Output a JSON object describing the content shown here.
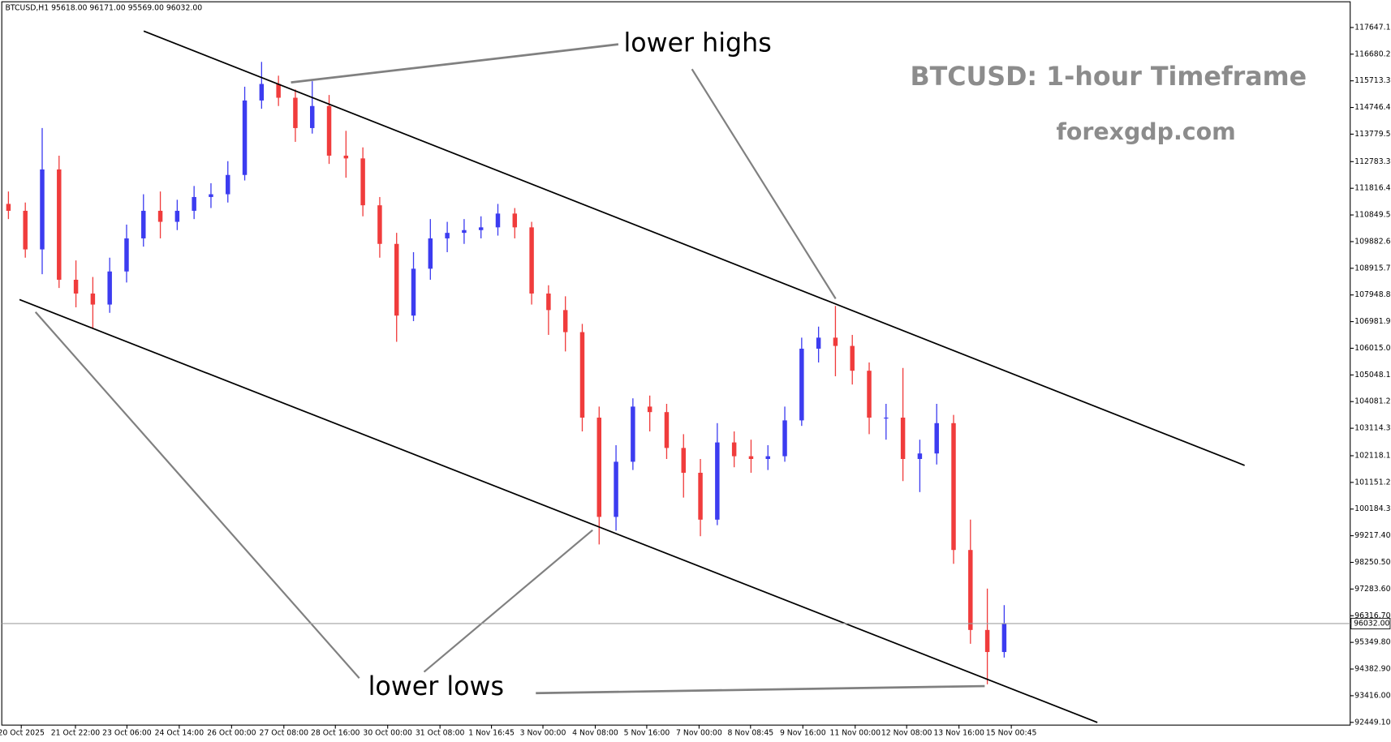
{
  "chart_data": {
    "type": "candlestick",
    "info": "BTCUSD,H1  95618.00 96171.00 95569.00 96032.00",
    "title": "BTCUSD: 1-hour Timeframe",
    "subtitle": "forexgdp.com",
    "annotations": [
      "lower highs",
      "lower lows"
    ],
    "up_color": "#3c3cf0",
    "down_color": "#f03c3c",
    "current_price": {
      "value": 96032,
      "label": "96032.00"
    },
    "xlim": [
      0,
      80
    ],
    "ylim": [
      92350,
      118580
    ],
    "xticks": [
      {
        "value": 1.26,
        "label": "20 Oct 2025"
      },
      {
        "value": 4.47,
        "label": "21 Oct 22:00"
      },
      {
        "value": 7.52,
        "label": "23 Oct 06:00"
      },
      {
        "value": 10.62,
        "label": "24 Oct 14:00"
      },
      {
        "value": 13.72,
        "label": "26 Oct 00:00"
      },
      {
        "value": 16.82,
        "label": "27 Oct 08:00"
      },
      {
        "value": 19.87,
        "label": "28 Oct 16:00"
      },
      {
        "value": 22.97,
        "label": "30 Oct 00:00"
      },
      {
        "value": 26.07,
        "label": "31 Oct 08:00"
      },
      {
        "value": 29.12,
        "label": "1 Nov 16:45"
      },
      {
        "value": 32.17,
        "label": "3 Nov 00:00"
      },
      {
        "value": 35.27,
        "label": "4 Nov 08:00"
      },
      {
        "value": 38.32,
        "label": "5 Nov 16:00"
      },
      {
        "value": 41.42,
        "label": "7 Nov 00:00"
      },
      {
        "value": 44.47,
        "label": "8 Nov 08:45"
      },
      {
        "value": 47.57,
        "label": "9 Nov 16:00"
      },
      {
        "value": 50.67,
        "label": "11 Nov 00:00"
      },
      {
        "value": 53.72,
        "label": "12 Nov 08:00"
      },
      {
        "value": 56.82,
        "label": "13 Nov 16:00"
      },
      {
        "value": 59.92,
        "label": "15 Nov 00:45"
      }
    ],
    "yticks": [
      {
        "value": 117647.1,
        "label": "117647.10"
      },
      {
        "value": 116680.2,
        "label": "116680.20"
      },
      {
        "value": 115713.3,
        "label": "115713.30"
      },
      {
        "value": 114746.4,
        "label": "114746.40"
      },
      {
        "value": 113779.5,
        "label": "113779.50"
      },
      {
        "value": 112783.3,
        "label": "112783.30"
      },
      {
        "value": 111816.4,
        "label": "111816.40"
      },
      {
        "value": 110849.5,
        "label": "110849.50"
      },
      {
        "value": 109882.6,
        "label": "109882.60"
      },
      {
        "value": 108915.7,
        "label": "108915.70"
      },
      {
        "value": 107948.8,
        "label": "107948.80"
      },
      {
        "value": 106981.9,
        "label": "106981.90"
      },
      {
        "value": 106015,
        "label": "106015.00"
      },
      {
        "value": 105048.1,
        "label": "105048.10"
      },
      {
        "value": 104081.2,
        "label": "104081.20"
      },
      {
        "value": 103114.3,
        "label": "103114.30"
      },
      {
        "value": 102118.1,
        "label": "102118.10"
      },
      {
        "value": 101151.2,
        "label": "101151.20"
      },
      {
        "value": 100184.3,
        "label": "100184.30"
      },
      {
        "value": 99217.4,
        "label": "99217.40"
      },
      {
        "value": 98250.5,
        "label": "98250.50"
      },
      {
        "value": 97283.6,
        "label": "97283.60"
      },
      {
        "value": 96316.7,
        "label": "96316.70"
      },
      {
        "value": 95349.8,
        "label": "95349.80"
      },
      {
        "value": 94382.9,
        "label": "94382.90"
      },
      {
        "value": 93416,
        "label": "93416.00"
      },
      {
        "value": 92449.1,
        "label": "92449.10"
      }
    ],
    "open": [
      111250,
      111000,
      109600,
      112500,
      108500,
      108000,
      107600,
      108800,
      110000,
      111000,
      110600,
      111000,
      111500,
      111600,
      112300,
      115000,
      115600,
      115100,
      114000,
      114800,
      113000,
      112900,
      111200,
      109800,
      107200,
      108900,
      110000,
      110200,
      110300,
      110400,
      110900,
      110400,
      108000,
      107400,
      106600,
      103500,
      99900,
      101900,
      103900,
      103700,
      102400,
      101500,
      99800,
      102600,
      102100,
      102000,
      102100,
      103400,
      106000,
      106400,
      106100,
      105200,
      103500,
      103500,
      102000,
      102200,
      103300,
      98700,
      95800,
      95000
    ],
    "high": [
      111700,
      111300,
      114000,
      113000,
      109200,
      108600,
      109300,
      110500,
      111600,
      111700,
      111400,
      111900,
      112000,
      112800,
      115500,
      116400,
      115900,
      115400,
      115700,
      115200,
      113900,
      113300,
      111500,
      110200,
      109500,
      110700,
      110600,
      110700,
      110800,
      111250,
      111100,
      110600,
      108300,
      107900,
      106900,
      103900,
      102500,
      104200,
      104300,
      104000,
      102900,
      102000,
      103300,
      103000,
      102700,
      102500,
      103900,
      106400,
      106800,
      107550,
      106500,
      105500,
      104000,
      105300,
      102700,
      104000,
      103600,
      99800,
      97300,
      96700
    ],
    "low": [
      110700,
      109300,
      108700,
      108200,
      107500,
      106750,
      107300,
      108400,
      109700,
      110000,
      110300,
      110700,
      111100,
      111300,
      112100,
      114700,
      114800,
      113500,
      113800,
      112700,
      112200,
      110800,
      109300,
      106250,
      107000,
      108500,
      109500,
      109800,
      110000,
      110100,
      110000,
      107600,
      106500,
      105900,
      103000,
      98900,
      99400,
      101600,
      103000,
      102000,
      100600,
      99200,
      99600,
      101700,
      101500,
      101600,
      101900,
      103200,
      105500,
      105000,
      104700,
      102900,
      102700,
      101200,
      100800,
      101800,
      98200,
      95300,
      93830,
      94800
    ],
    "close": [
      111000,
      109600,
      112500,
      108500,
      108000,
      107600,
      108800,
      110000,
      111000,
      110600,
      111000,
      111500,
      111600,
      112300,
      115000,
      115600,
      115100,
      114000,
      114800,
      113000,
      112900,
      111200,
      109800,
      107200,
      108900,
      110000,
      110200,
      110300,
      110400,
      110900,
      110400,
      108000,
      107400,
      106600,
      103500,
      99900,
      101900,
      103900,
      103700,
      102400,
      101500,
      99800,
      102600,
      102100,
      102000,
      102100,
      103400,
      106000,
      106400,
      106100,
      105200,
      103500,
      103500,
      102000,
      102200,
      103300,
      98700,
      95800,
      95000,
      96032
    ]
  }
}
